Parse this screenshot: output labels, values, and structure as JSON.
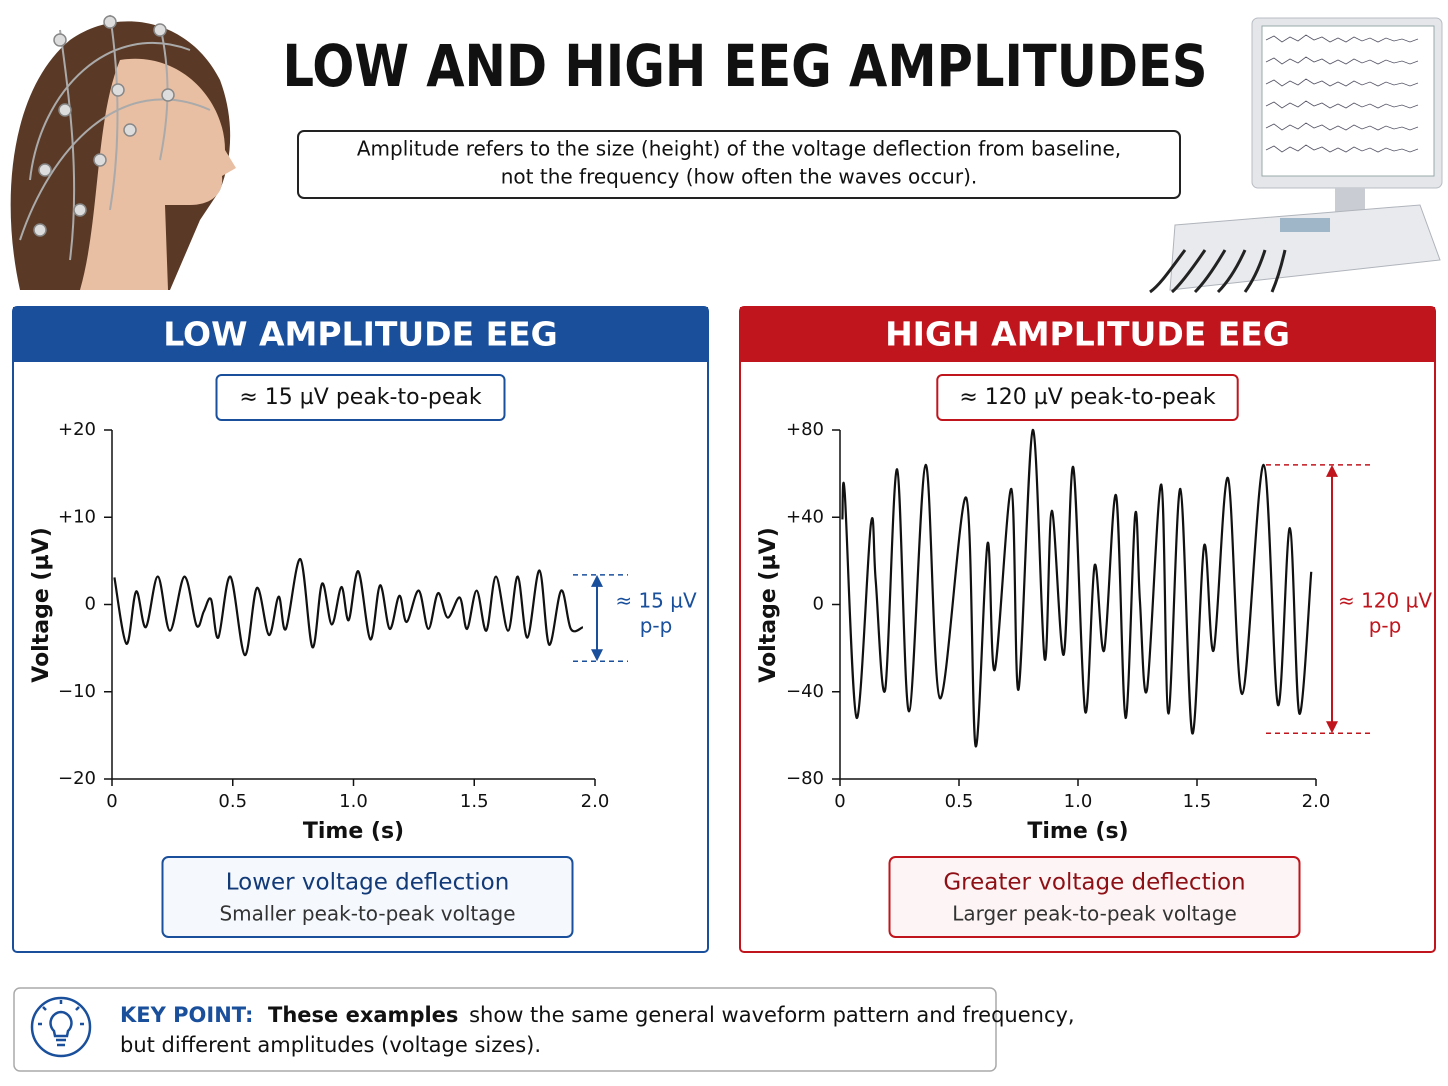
{
  "header": {
    "title": "LOW AND HIGH EEG AMPLITUDES",
    "description": [
      "Amplitude refers to the size (height) of the voltage deflection from baseline,",
      "not the frequency (how often the waves occur)."
    ]
  },
  "chart_data": [
    {
      "type": "line",
      "title": "LOW AMPLITUDE EEG",
      "subtitle": "≈ 15 µV peak-to-peak",
      "accent_color": "#1a4f9c",
      "color": "#111111",
      "x_label": "Time (s)",
      "y_label": "Voltage (µV)",
      "xlim": [
        0,
        2
      ],
      "xticks": [
        0,
        0.5,
        {
          "value": 1,
          "label": "1.0"
        },
        1.5,
        {
          "value": 2,
          "label": "2.0"
        }
      ],
      "ylim": [
        -20,
        20
      ],
      "yticks": [
        {
          "value": 20,
          "label": "+20"
        },
        {
          "value": 10,
          "label": "+10"
        },
        0,
        {
          "value": -10,
          "label": "−10"
        },
        {
          "value": -20,
          "label": "−20"
        }
      ],
      "x": [
        0.01,
        0.06,
        0.1,
        0.14,
        0.19,
        0.24,
        0.3,
        0.35,
        0.38,
        0.41,
        0.44,
        0.49,
        0.55,
        0.6,
        0.65,
        0.69,
        0.72,
        0.78,
        0.83,
        0.87,
        0.91,
        0.95,
        0.98,
        1.02,
        1.07,
        1.11,
        1.15,
        1.19,
        1.22,
        1.27,
        1.31,
        1.35,
        1.39,
        1.44,
        1.47,
        1.51,
        1.55,
        1.59,
        1.64,
        1.68,
        1.72,
        1.77,
        1.81,
        1.86,
        1.9,
        1.95
      ],
      "values": [
        3.1,
        -4.5,
        1.5,
        -2.6,
        3.2,
        -3.0,
        3.2,
        -2.4,
        -0.8,
        0.6,
        -3.8,
        3.2,
        -5.8,
        1.9,
        -3.5,
        0.9,
        -2.8,
        5.2,
        -4.9,
        2.4,
        -2.3,
        2.0,
        -1.8,
        3.8,
        -4.0,
        2.2,
        -2.8,
        1.0,
        -2.0,
        1.6,
        -2.8,
        1.3,
        -1.5,
        0.8,
        -2.8,
        1.6,
        -3.0,
        3.2,
        -3.0,
        3.2,
        -3.8,
        3.9,
        -4.6,
        1.6,
        -2.8,
        -2.6
      ],
      "annotation": {
        "lines": [
          "≈ 15 µV",
          "p-p"
        ],
        "range": [
          3.4,
          -6.5
        ]
      },
      "caption": {
        "title": "Lower voltage deflection",
        "subtitle": "Smaller peak-to-peak voltage"
      }
    },
    {
      "type": "line",
      "title": "HIGH AMPLITUDE EEG",
      "subtitle": "≈ 120 µV peak-to-peak",
      "accent_color": "#c0151d",
      "color": "#111111",
      "x_label": "Time (s)",
      "y_label": "Voltage (µV)",
      "xlim": [
        0,
        2
      ],
      "xticks": [
        0,
        0.5,
        {
          "value": 1,
          "label": "1.0"
        },
        1.5,
        {
          "value": 2,
          "label": "2.0"
        }
      ],
      "ylim": [
        -80,
        80
      ],
      "yticks": [
        {
          "value": 80,
          "label": "+80"
        },
        {
          "value": 40,
          "label": "+40"
        },
        0,
        {
          "value": -40,
          "label": "−40"
        },
        {
          "value": -80,
          "label": "−80"
        }
      ],
      "x": [
        0.01,
        0.02,
        0.07,
        0.13,
        0.15,
        0.19,
        0.24,
        0.29,
        0.36,
        0.42,
        0.53,
        0.57,
        0.62,
        0.65,
        0.72,
        0.75,
        0.81,
        0.86,
        0.89,
        0.94,
        0.98,
        1.03,
        1.07,
        1.11,
        1.16,
        1.2,
        1.24,
        1.26,
        1.29,
        1.35,
        1.38,
        1.43,
        1.48,
        1.53,
        1.57,
        1.63,
        1.69,
        1.78,
        1.84,
        1.89,
        1.93,
        1.98
      ],
      "values": [
        39,
        51,
        -52,
        37,
        11,
        -39,
        62,
        -49,
        64,
        -43,
        49,
        -65,
        28,
        -30,
        53,
        -39,
        80,
        -25,
        43,
        -23,
        63,
        -49,
        18,
        -21,
        50,
        -52,
        41,
        2,
        -39,
        55,
        -50,
        53,
        -59,
        27,
        -21,
        58,
        -41,
        64,
        -46,
        35,
        -50,
        15
      ],
      "annotation": {
        "lines": [
          "≈ 120 µV",
          "p-p"
        ],
        "range": [
          64,
          -59
        ]
      },
      "caption": {
        "title": "Greater voltage deflection",
        "subtitle": "Larger peak-to-peak voltage"
      }
    }
  ],
  "key_point": {
    "label": "KEY POINT:",
    "emphasis": "These examples",
    "text": [
      "show the same general waveform pattern and frequency,",
      "but different amplitudes (voltage sizes)."
    ]
  }
}
